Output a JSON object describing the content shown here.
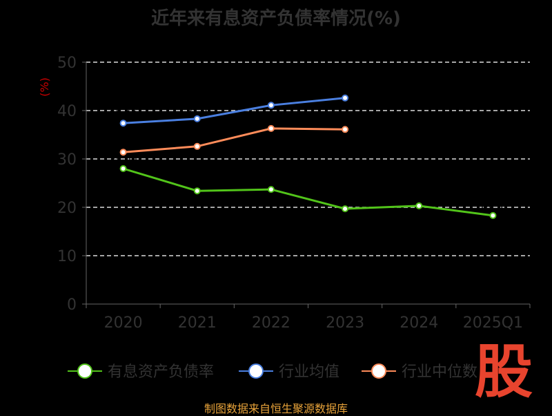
{
  "chart_data": {
    "type": "line",
    "title": "近年来有息资产负债率情况(%)",
    "ylabel": "(%)",
    "categories": [
      "2020",
      "2021",
      "2022",
      "2023",
      "2024",
      "2025Q1"
    ],
    "ylim": [
      0,
      50
    ],
    "yticks": [
      0,
      10,
      20,
      30,
      40,
      50
    ],
    "grid": true,
    "legend_position": "bottom",
    "series": [
      {
        "name": "有息资产负债率",
        "color": "#52c41a",
        "values": [
          28.0,
          23.4,
          23.7,
          19.7,
          20.3,
          18.3
        ]
      },
      {
        "name": "行业均值",
        "color": "#4a7fe0",
        "values": [
          37.4,
          38.3,
          41.1,
          42.6,
          null,
          null
        ]
      },
      {
        "name": "行业中位数",
        "color": "#ff8c5a",
        "values": [
          31.4,
          32.6,
          36.3,
          36.1,
          null,
          null
        ]
      }
    ]
  },
  "source": "制图数据来自恒生聚源数据库",
  "logo": "股"
}
